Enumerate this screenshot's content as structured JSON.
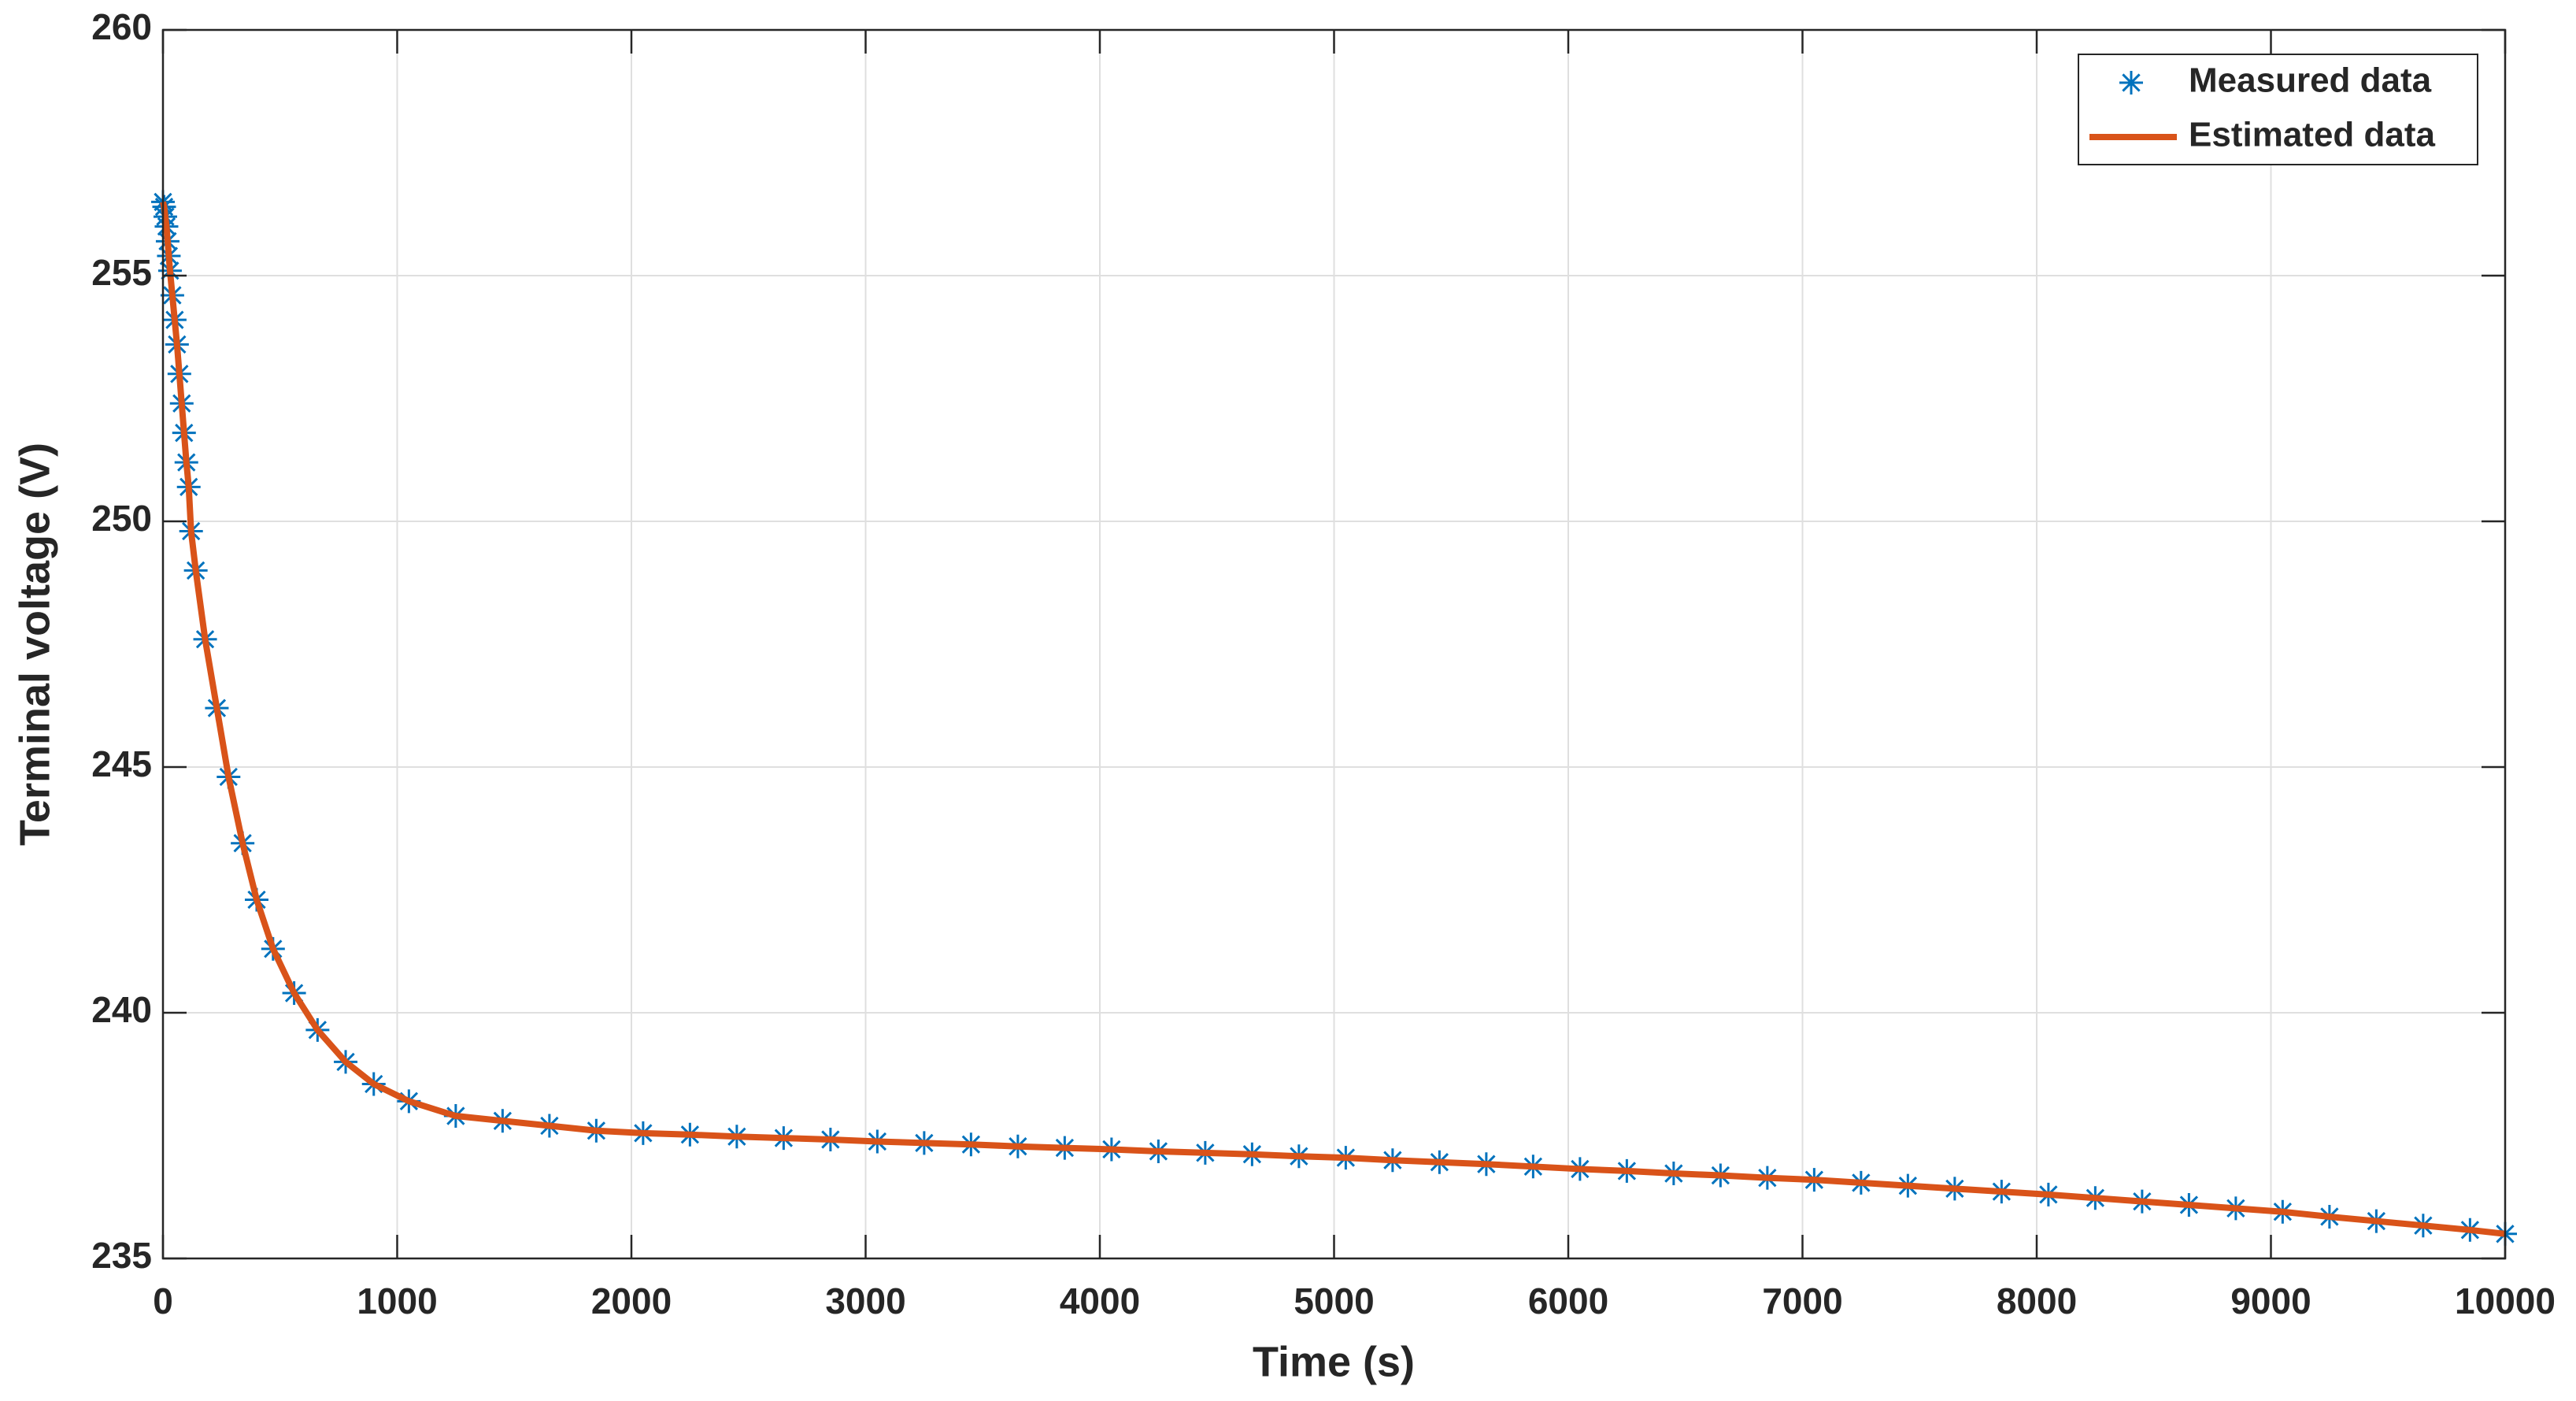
{
  "chart_data": {
    "type": "line",
    "x_label": "Time (s)",
    "y_label": "Terminal voltage (V)",
    "x": [
      0,
      5,
      10,
      15,
      20,
      25,
      30,
      40,
      50,
      60,
      70,
      80,
      90,
      100,
      110,
      120,
      140,
      180,
      230,
      280,
      340,
      400,
      470,
      560,
      660,
      780,
      900,
      1050,
      1250,
      1450,
      1650,
      1850,
      2050,
      2250,
      2450,
      2650,
      2850,
      3050,
      3250,
      3450,
      3650,
      3850,
      4050,
      4250,
      4450,
      4650,
      4850,
      5050,
      5250,
      5450,
      5650,
      5850,
      6050,
      6250,
      6450,
      6650,
      6850,
      7050,
      7250,
      7450,
      7650,
      7850,
      8050,
      8250,
      8450,
      8650,
      8850,
      9050,
      9250,
      9450,
      9650,
      9850,
      10000
    ],
    "series": [
      {
        "name": "Measured data",
        "color": "#0072BD",
        "marker": "asterisk",
        "values": [
          256.5,
          256.4,
          256.2,
          256.0,
          255.7,
          255.4,
          255.1,
          254.6,
          254.1,
          253.6,
          253.0,
          252.4,
          251.8,
          251.2,
          250.7,
          249.8,
          249.0,
          247.6,
          246.2,
          244.8,
          243.45,
          242.3,
          241.3,
          240.4,
          239.65,
          239.0,
          238.55,
          238.2,
          237.9,
          237.8,
          237.7,
          237.6,
          237.55,
          237.52,
          237.48,
          237.45,
          237.42,
          237.38,
          237.35,
          237.32,
          237.28,
          237.25,
          237.22,
          237.18,
          237.15,
          237.12,
          237.08,
          237.05,
          237.0,
          236.96,
          236.92,
          236.87,
          236.82,
          236.78,
          236.73,
          236.69,
          236.64,
          236.6,
          236.54,
          236.48,
          236.42,
          236.36,
          236.3,
          236.23,
          236.16,
          236.09,
          236.02,
          235.95,
          235.85,
          235.76,
          235.67,
          235.58,
          235.5
        ]
      },
      {
        "name": "Estimated data",
        "color": "#D95319",
        "marker": "none",
        "values": [
          256.5,
          256.4,
          256.2,
          256.0,
          255.7,
          255.4,
          255.1,
          254.6,
          254.1,
          253.6,
          253.0,
          252.4,
          251.8,
          251.2,
          250.7,
          249.8,
          249.0,
          247.6,
          246.2,
          244.8,
          243.45,
          242.3,
          241.3,
          240.4,
          239.65,
          239.0,
          238.55,
          238.2,
          237.9,
          237.8,
          237.7,
          237.6,
          237.55,
          237.52,
          237.48,
          237.45,
          237.42,
          237.38,
          237.35,
          237.32,
          237.28,
          237.25,
          237.22,
          237.18,
          237.15,
          237.12,
          237.08,
          237.05,
          237.0,
          236.96,
          236.92,
          236.87,
          236.82,
          236.78,
          236.73,
          236.69,
          236.64,
          236.6,
          236.54,
          236.48,
          236.42,
          236.36,
          236.3,
          236.23,
          236.16,
          236.09,
          236.02,
          235.95,
          235.85,
          235.76,
          235.67,
          235.58,
          235.5
        ]
      }
    ],
    "xlim": [
      0,
      10000
    ],
    "ylim": [
      235,
      260
    ],
    "xticks": [
      0,
      1000,
      2000,
      3000,
      4000,
      5000,
      6000,
      7000,
      8000,
      9000,
      10000
    ],
    "yticks": [
      235,
      240,
      245,
      250,
      255,
      260
    ],
    "grid": true,
    "legend": "upper right"
  }
}
